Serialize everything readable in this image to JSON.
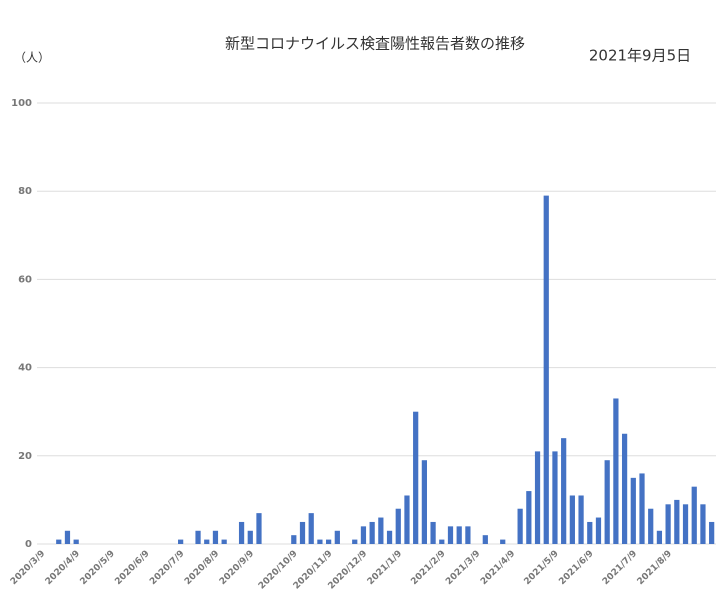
{
  "chart_data": {
    "type": "bar",
    "title": "新型コロナウイルス検査陽性報告者数の推移",
    "subtitle": "2021年9月5日",
    "y_label": "（人）",
    "color": "#4472c4",
    "grid": true,
    "ylim": [
      0,
      100
    ],
    "yticks": [
      0,
      20,
      40,
      60,
      80,
      100
    ],
    "categories": [
      "2020/3/9",
      null,
      null,
      null,
      "2020/4/9",
      null,
      null,
      null,
      "2020/5/9",
      null,
      null,
      null,
      "2020/6/9",
      null,
      null,
      null,
      "2020/7/9",
      null,
      null,
      null,
      "2020/8/9",
      null,
      null,
      null,
      "2020/9/9",
      null,
      null,
      null,
      null,
      "2020/10/9",
      null,
      null,
      null,
      "2020/11/9",
      null,
      null,
      null,
      "2020/12/9",
      null,
      null,
      null,
      "2021/1/9",
      null,
      null,
      null,
      null,
      "2021/2/9",
      null,
      null,
      null,
      "2021/3/9",
      null,
      null,
      null,
      "2021/4/9",
      null,
      null,
      null,
      null,
      "2021/5/9",
      null,
      null,
      null,
      "2021/6/9",
      null,
      null,
      null,
      null,
      "2021/7/9",
      null,
      null,
      null,
      "2021/8/9",
      null,
      null,
      null,
      null,
      null
    ],
    "values": [
      0,
      0,
      1,
      3,
      1,
      0,
      0,
      0,
      0,
      0,
      0,
      0,
      0,
      0,
      0,
      0,
      1,
      0,
      3,
      1,
      3,
      1,
      0,
      5,
      3,
      7,
      0,
      0,
      0,
      2,
      5,
      7,
      1,
      1,
      3,
      0,
      1,
      4,
      5,
      6,
      3,
      8,
      11,
      30,
      19,
      5,
      1,
      4,
      4,
      4,
      0,
      2,
      0,
      1,
      0,
      8,
      12,
      21,
      79,
      21,
      24,
      11,
      11,
      5,
      6,
      19,
      33,
      25,
      15,
      16,
      8,
      3,
      9,
      10,
      9,
      13,
      9,
      5
    ]
  }
}
